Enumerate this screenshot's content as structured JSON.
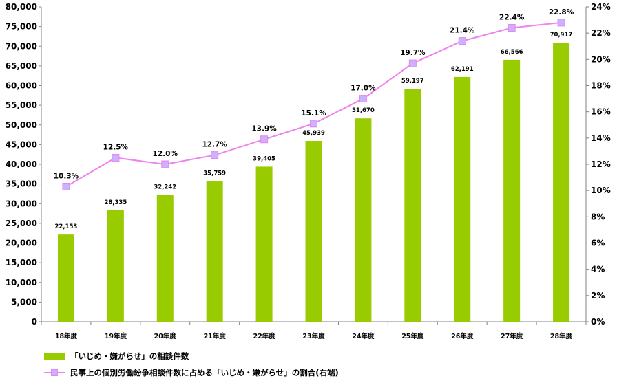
{
  "chart_data": {
    "type": "bar",
    "categories": [
      "18年度",
      "19年度",
      "20年度",
      "21年度",
      "22年度",
      "23年度",
      "24年度",
      "25年度",
      "26年度",
      "27年度",
      "28年度"
    ],
    "series": [
      {
        "name": "「いじめ・嫌がらせ」の相談件数",
        "kind": "bar",
        "axis": "left",
        "values": [
          22153,
          28335,
          32242,
          35759,
          39405,
          45939,
          51670,
          59197,
          62191,
          66566,
          70917
        ],
        "labels": [
          "22,153",
          "28,335",
          "32,242",
          "35,759",
          "39,405",
          "45,939",
          "51,670",
          "59,197",
          "62,191",
          "66,566",
          "70,917"
        ]
      },
      {
        "name": "民事上の個別労働紛争相談件数に占める「いじめ・嫌がらせ」の割合(右端)",
        "kind": "line",
        "axis": "right",
        "values": [
          10.3,
          12.5,
          12.0,
          12.7,
          13.9,
          15.1,
          17.0,
          19.7,
          21.4,
          22.4,
          22.8
        ],
        "labels": [
          "10.3%",
          "12.5%",
          "12.0%",
          "12.7%",
          "13.9%",
          "15.1%",
          "17.0%",
          "19.7%",
          "21.4%",
          "22.4%",
          "22.8%"
        ]
      }
    ],
    "y_left": {
      "range": [
        0,
        80000
      ],
      "ticks": [
        0,
        5000,
        10000,
        15000,
        20000,
        25000,
        30000,
        35000,
        40000,
        45000,
        50000,
        55000,
        60000,
        65000,
        70000,
        75000,
        80000
      ],
      "tick_labels": [
        "0",
        "5,000",
        "10,000",
        "15,000",
        "20,000",
        "25,000",
        "30,000",
        "35,000",
        "40,000",
        "45,000",
        "50,000",
        "55,000",
        "60,000",
        "65,000",
        "70,000",
        "75,000",
        "80,000"
      ]
    },
    "y_right": {
      "range": [
        0,
        24
      ],
      "ticks": [
        0,
        2,
        4,
        6,
        8,
        10,
        12,
        14,
        16,
        18,
        20,
        22,
        24
      ],
      "tick_labels": [
        "0%",
        "2%",
        "4%",
        "6%",
        "8%",
        "10%",
        "12%",
        "14%",
        "16%",
        "18%",
        "20%",
        "22%",
        "24%"
      ]
    },
    "grid": false,
    "legend_position": "bottom-left",
    "colors": {
      "bar": "#99cc00",
      "line": "#ee82ee",
      "marker_fill": "#c9b3ff",
      "axis": "#808080"
    }
  },
  "legend": {
    "bar_label": "「いじめ・嫌がらせ」の相談件数",
    "line_label": "民事上の個別労働紛争相談件数に占める「いじめ・嫌がらせ」の割合(右端)"
  }
}
